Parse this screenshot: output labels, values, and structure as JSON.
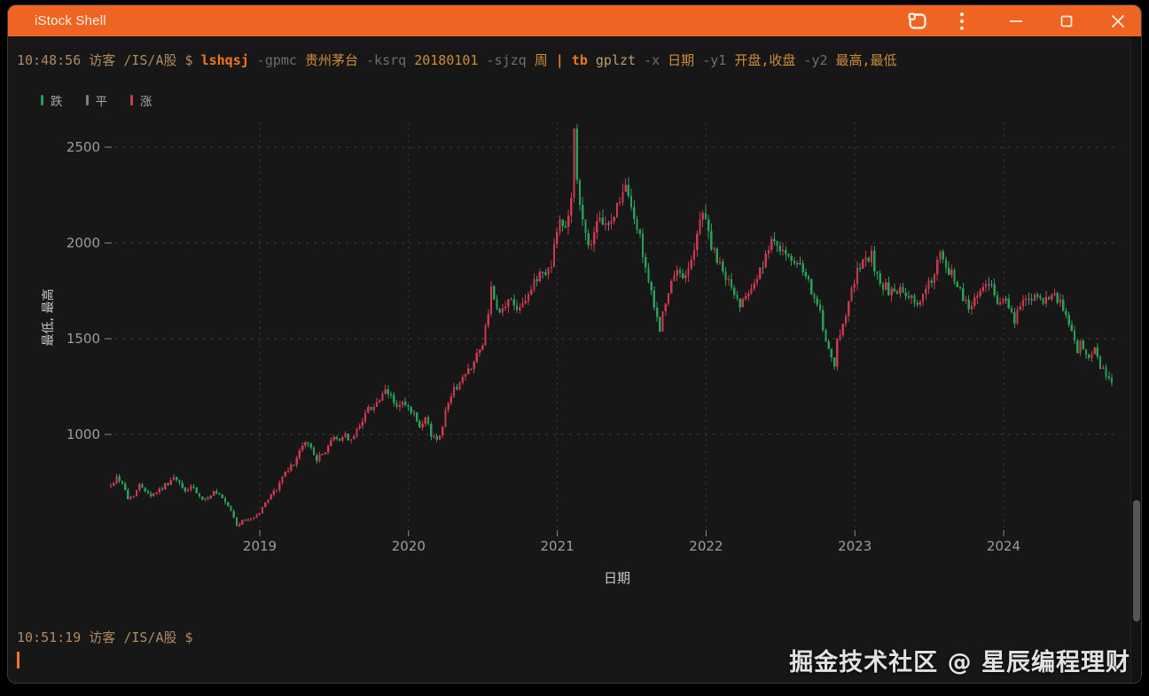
{
  "window": {
    "title": "iStock Shell",
    "titlebar_color": "#ef6423",
    "controls": {
      "app_icon": "app-tab-icon",
      "menu_icon": "kebab-menu-icon",
      "minimize": "minimize",
      "maximize": "maximize",
      "close": "close"
    }
  },
  "terminal": {
    "prompt1": {
      "time": "10:48:56",
      "user": "访客",
      "path": "/IS/A股",
      "symbol": "$"
    },
    "command_segments": [
      {
        "text": "lshqsj",
        "type": "command"
      },
      {
        "text": "-gpmc",
        "type": "flag"
      },
      {
        "text": "贵州茅台",
        "type": "arg"
      },
      {
        "text": "-ksrq",
        "type": "flag"
      },
      {
        "text": "20180101",
        "type": "arg"
      },
      {
        "text": "-sjzq",
        "type": "flag"
      },
      {
        "text": "周",
        "type": "arg"
      },
      {
        "text": "|",
        "type": "pipe"
      },
      {
        "text": "tb",
        "type": "command"
      },
      {
        "text": "gplzt",
        "type": "arg2"
      },
      {
        "text": "-x",
        "type": "flag"
      },
      {
        "text": "日期",
        "type": "arg"
      },
      {
        "text": "-y1",
        "type": "flag"
      },
      {
        "text": "开盘,收盘",
        "type": "arg"
      },
      {
        "text": "-y2",
        "type": "flag"
      },
      {
        "text": "最高,最低",
        "type": "arg"
      }
    ],
    "prompt2": {
      "time": "10:51:19",
      "user": "访客",
      "path": "/IS/A股",
      "symbol": "$"
    },
    "colors": {
      "prompt": "#b08a64",
      "command": "#f2761f",
      "flag": "#6d6d6d",
      "argument": "#d08b3a",
      "argument_alt": "#bf9a6d",
      "pipe": "#f2761f",
      "cursor": "#f0762a"
    }
  },
  "chart_data": {
    "type": "candlestick",
    "series_name": "贵州茅台",
    "interval": "周",
    "xlabel": "日期",
    "ylabel": "最低, 最高",
    "x_tick_labels": [
      "2019",
      "2020",
      "2021",
      "2022",
      "2023",
      "2024"
    ],
    "y_ticks": [
      1000,
      1500,
      2000,
      2500
    ],
    "y_range": [
      900,
      2660
    ],
    "grid": true,
    "legend_position": "top-left",
    "legend": [
      {
        "label": "跌",
        "color": "#27a157"
      },
      {
        "label": "平",
        "color": "#7f7f7f"
      },
      {
        "label": "涨",
        "color": "#cb3a4f"
      }
    ],
    "colors": {
      "up": "#cb3a4f",
      "down": "#27a157",
      "flat": "#7f7f7f"
    },
    "weeks_total": 350,
    "weeks_per_year": 52,
    "start_year": 2018,
    "price_anchors": [
      [
        0,
        730
      ],
      [
        2,
        778
      ],
      [
        4,
        748
      ],
      [
        6,
        662
      ],
      [
        8,
        688
      ],
      [
        10,
        732
      ],
      [
        12,
        715
      ],
      [
        14,
        682
      ],
      [
        16,
        703
      ],
      [
        18,
        722
      ],
      [
        20,
        748
      ],
      [
        22,
        772
      ],
      [
        24,
        740
      ],
      [
        26,
        702
      ],
      [
        28,
        730
      ],
      [
        30,
        692
      ],
      [
        32,
        652
      ],
      [
        34,
        672
      ],
      [
        36,
        700
      ],
      [
        38,
        678
      ],
      [
        40,
        640
      ],
      [
        42,
        600
      ],
      [
        44,
        525
      ],
      [
        46,
        545
      ],
      [
        48,
        558
      ],
      [
        50,
        568
      ],
      [
        52,
        592
      ],
      [
        54,
        640
      ],
      [
        56,
        692
      ],
      [
        58,
        712
      ],
      [
        60,
        782
      ],
      [
        62,
        812
      ],
      [
        64,
        852
      ],
      [
        66,
        902
      ],
      [
        68,
        962
      ],
      [
        70,
        930
      ],
      [
        72,
        872
      ],
      [
        74,
        892
      ],
      [
        76,
        942
      ],
      [
        78,
        982
      ],
      [
        80,
        972
      ],
      [
        82,
        1002
      ],
      [
        84,
        962
      ],
      [
        86,
        1022
      ],
      [
        88,
        1082
      ],
      [
        90,
        1132
      ],
      [
        92,
        1152
      ],
      [
        94,
        1182
      ],
      [
        96,
        1218
      ],
      [
        98,
        1200
      ],
      [
        100,
        1142
      ],
      [
        102,
        1162
      ],
      [
        104,
        1130
      ],
      [
        106,
        1102
      ],
      [
        108,
        1022
      ],
      [
        110,
        1082
      ],
      [
        112,
        1002
      ],
      [
        114,
        968
      ],
      [
        116,
        1052
      ],
      [
        118,
        1182
      ],
      [
        120,
        1232
      ],
      [
        122,
        1272
      ],
      [
        124,
        1312
      ],
      [
        126,
        1362
      ],
      [
        128,
        1422
      ],
      [
        130,
        1452
      ],
      [
        132,
        1652
      ],
      [
        133,
        1752
      ],
      [
        134,
        1682
      ],
      [
        136,
        1622
      ],
      [
        138,
        1682
      ],
      [
        140,
        1702
      ],
      [
        142,
        1662
      ],
      [
        144,
        1702
      ],
      [
        146,
        1732
      ],
      [
        148,
        1782
      ],
      [
        150,
        1852
      ],
      [
        152,
        1842
      ],
      [
        154,
        1902
      ],
      [
        155,
        1982
      ],
      [
        156,
        2052
      ],
      [
        157,
        2122
      ],
      [
        158,
        2082
      ],
      [
        160,
        2152
      ],
      [
        161,
        2252
      ],
      [
        162,
        2601
      ],
      [
        163,
        2330
      ],
      [
        164,
        2182
      ],
      [
        166,
        2052
      ],
      [
        168,
        1982
      ],
      [
        170,
        2082
      ],
      [
        172,
        2122
      ],
      [
        174,
        2082
      ],
      [
        176,
        2152
      ],
      [
        178,
        2232
      ],
      [
        180,
        2282
      ],
      [
        182,
        2182
      ],
      [
        184,
        2082
      ],
      [
        186,
        1952
      ],
      [
        188,
        1802
      ],
      [
        190,
        1652
      ],
      [
        192,
        1562
      ],
      [
        194,
        1682
      ],
      [
        196,
        1782
      ],
      [
        198,
        1852
      ],
      [
        200,
        1822
      ],
      [
        202,
        1882
      ],
      [
        204,
        1952
      ],
      [
        206,
        2122
      ],
      [
        207,
        2182
      ],
      [
        208,
        2122
      ],
      [
        210,
        1982
      ],
      [
        212,
        1902
      ],
      [
        214,
        1852
      ],
      [
        216,
        1802
      ],
      [
        218,
        1722
      ],
      [
        220,
        1682
      ],
      [
        222,
        1742
      ],
      [
        224,
        1782
      ],
      [
        226,
        1822
      ],
      [
        228,
        1882
      ],
      [
        230,
        1952
      ],
      [
        232,
        2032
      ],
      [
        234,
        1982
      ],
      [
        236,
        1932
      ],
      [
        238,
        1882
      ],
      [
        240,
        1902
      ],
      [
        242,
        1842
      ],
      [
        244,
        1782
      ],
      [
        246,
        1732
      ],
      [
        248,
        1622
      ],
      [
        250,
        1482
      ],
      [
        252,
        1382
      ],
      [
        253,
        1352
      ],
      [
        254,
        1482
      ],
      [
        256,
        1582
      ],
      [
        258,
        1702
      ],
      [
        260,
        1802
      ],
      [
        262,
        1882
      ],
      [
        264,
        1902
      ],
      [
        266,
        1932
      ],
      [
        268,
        1822
      ],
      [
        270,
        1782
      ],
      [
        272,
        1752
      ],
      [
        274,
        1722
      ],
      [
        276,
        1762
      ],
      [
        278,
        1702
      ],
      [
        280,
        1732
      ],
      [
        282,
        1672
      ],
      [
        284,
        1722
      ],
      [
        286,
        1782
      ],
      [
        288,
        1842
      ],
      [
        290,
        1932
      ],
      [
        292,
        1852
      ],
      [
        294,
        1832
      ],
      [
        296,
        1782
      ],
      [
        298,
        1722
      ],
      [
        300,
        1662
      ],
      [
        302,
        1702
      ],
      [
        304,
        1762
      ],
      [
        306,
        1802
      ],
      [
        308,
        1762
      ],
      [
        310,
        1702
      ],
      [
        312,
        1722
      ],
      [
        314,
        1642
      ],
      [
        316,
        1602
      ],
      [
        318,
        1662
      ],
      [
        320,
        1702
      ],
      [
        322,
        1722
      ],
      [
        324,
        1702
      ],
      [
        326,
        1682
      ],
      [
        328,
        1702
      ],
      [
        330,
        1712
      ],
      [
        332,
        1682
      ],
      [
        334,
        1622
      ],
      [
        336,
        1542
      ],
      [
        337,
        1482
      ],
      [
        338,
        1442
      ],
      [
        339,
        1472
      ],
      [
        340,
        1432
      ],
      [
        342,
        1402
      ],
      [
        344,
        1432
      ],
      [
        345,
        1392
      ],
      [
        346,
        1362
      ],
      [
        348,
        1312
      ],
      [
        350,
        1255
      ]
    ]
  },
  "watermark": "掘金技术社区 @ 星辰编程理财"
}
